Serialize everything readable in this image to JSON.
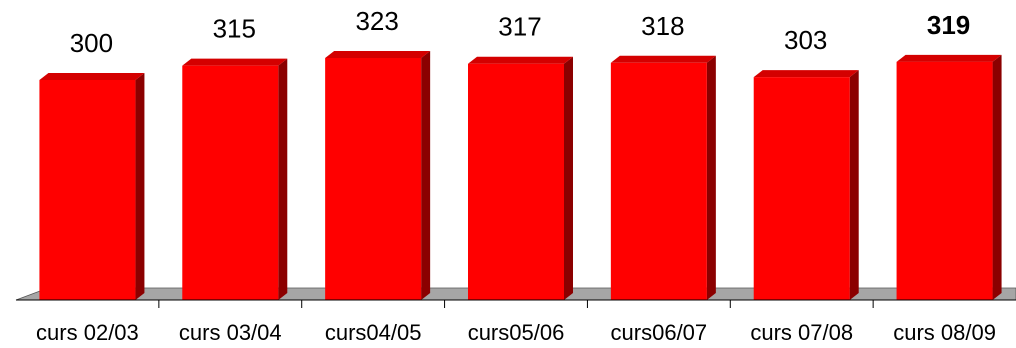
{
  "chart_data": {
    "type": "bar",
    "title": "",
    "xlabel": "",
    "ylabel": "",
    "categories": [
      "curs 02/03",
      "curs 03/04",
      "curs04/05",
      "curs05/06",
      "curs06/07",
      "curs 07/08",
      "curs 08/09"
    ],
    "values": [
      300,
      315,
      323,
      317,
      318,
      303,
      319
    ],
    "data_labels": [
      "300",
      "315",
      "323",
      "317",
      "318",
      "303",
      "319"
    ],
    "highlight_index": 6,
    "ylim": [
      0,
      340
    ],
    "grid": false,
    "legend": "none",
    "colors": {
      "bar_front": "#ff0000",
      "bar_side": "#8b0000",
      "bar_top": "#d40000",
      "floor": "#a6a6a6",
      "floor_dark": "#7f7f7f"
    }
  }
}
